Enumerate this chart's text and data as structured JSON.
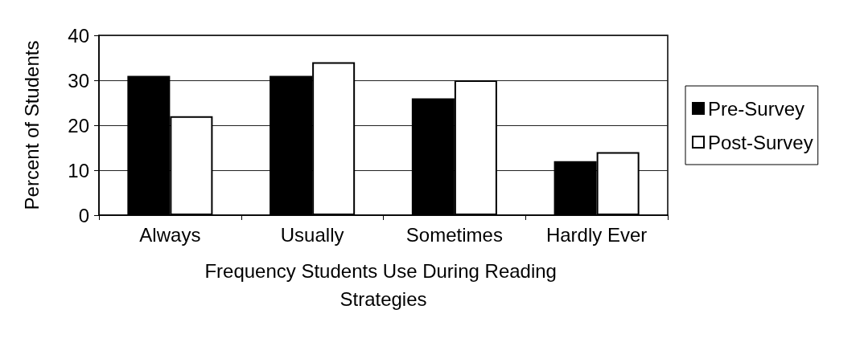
{
  "chart_data": {
    "type": "bar",
    "xlabel": "Frequency Students Use During Reading Strategies",
    "ylabel": "Percent of Students",
    "categories": [
      "Always",
      "Usually",
      "Sometimes",
      "Hardly Ever"
    ],
    "series": [
      {
        "name": "Pre-Survey",
        "color": "#000000",
        "values": [
          31,
          31,
          26,
          12
        ]
      },
      {
        "name": "Post-Survey",
        "color": "#ffffff",
        "values": [
          22,
          34,
          30,
          14
        ]
      }
    ],
    "ylim": [
      0,
      40
    ],
    "yticks": [
      0,
      10,
      20,
      30,
      40
    ],
    "grid": "y",
    "legend": "right"
  }
}
